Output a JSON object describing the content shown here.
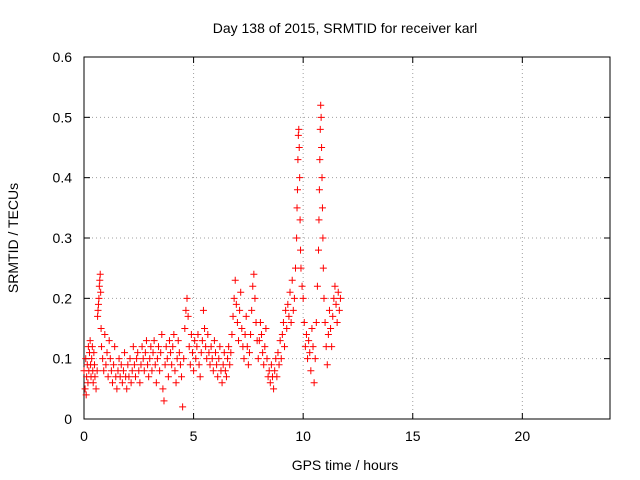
{
  "chart_data": {
    "type": "scatter",
    "title": "Day 138 of 2015, SRMTID for receiver karl",
    "xlabel": "GPS time / hours",
    "ylabel": "SRMTID / TECUs",
    "xlim": [
      0,
      24
    ],
    "ylim": [
      0,
      0.6
    ],
    "xticks": [
      0,
      5,
      10,
      15,
      20
    ],
    "xtick_labels": [
      "0",
      "5",
      "10",
      "15",
      "20"
    ],
    "yticks": [
      0,
      0.1,
      0.2,
      0.3,
      0.4,
      0.5,
      0.6
    ],
    "ytick_labels": [
      "0",
      "0.1",
      "0.2",
      "0.3",
      "0.4",
      "0.5",
      "0.6"
    ],
    "grid": true,
    "marker": "+",
    "color": "#ff0000",
    "series": [
      {
        "name": "SRMTID",
        "points": [
          [
            0.0,
            0.08
          ],
          [
            0.05,
            0.05
          ],
          [
            0.08,
            0.1
          ],
          [
            0.1,
            0.04
          ],
          [
            0.12,
            0.07
          ],
          [
            0.15,
            0.09
          ],
          [
            0.18,
            0.06
          ],
          [
            0.2,
            0.12
          ],
          [
            0.22,
            0.08
          ],
          [
            0.25,
            0.11
          ],
          [
            0.28,
            0.13
          ],
          [
            0.3,
            0.09
          ],
          [
            0.32,
            0.07
          ],
          [
            0.35,
            0.1
          ],
          [
            0.38,
            0.12
          ],
          [
            0.4,
            0.08
          ],
          [
            0.42,
            0.06
          ],
          [
            0.45,
            0.11
          ],
          [
            0.48,
            0.09
          ],
          [
            0.5,
            0.07
          ],
          [
            0.55,
            0.05
          ],
          [
            0.6,
            0.08
          ],
          [
            0.62,
            0.17
          ],
          [
            0.64,
            0.18
          ],
          [
            0.66,
            0.19
          ],
          [
            0.68,
            0.2
          ],
          [
            0.7,
            0.22
          ],
          [
            0.72,
            0.23
          ],
          [
            0.74,
            0.24
          ],
          [
            0.76,
            0.21
          ],
          [
            0.78,
            0.15
          ],
          [
            0.8,
            0.12
          ],
          [
            0.85,
            0.1
          ],
          [
            0.9,
            0.08
          ],
          [
            0.95,
            0.14
          ],
          [
            1.0,
            0.09
          ],
          [
            1.05,
            0.11
          ],
          [
            1.1,
            0.07
          ],
          [
            1.15,
            0.13
          ],
          [
            1.2,
            0.1
          ],
          [
            1.25,
            0.08
          ],
          [
            1.3,
            0.06
          ],
          [
            1.35,
            0.09
          ],
          [
            1.4,
            0.12
          ],
          [
            1.45,
            0.07
          ],
          [
            1.5,
            0.05
          ],
          [
            1.55,
            0.08
          ],
          [
            1.6,
            0.1
          ],
          [
            1.65,
            0.07
          ],
          [
            1.7,
            0.09
          ],
          [
            1.75,
            0.06
          ],
          [
            1.8,
            0.08
          ],
          [
            1.85,
            0.11
          ],
          [
            1.9,
            0.07
          ],
          [
            1.95,
            0.05
          ],
          [
            2.0,
            0.09
          ],
          [
            2.05,
            0.07
          ],
          [
            2.1,
            0.1
          ],
          [
            2.15,
            0.06
          ],
          [
            2.2,
            0.08
          ],
          [
            2.25,
            0.12
          ],
          [
            2.3,
            0.09
          ],
          [
            2.35,
            0.07
          ],
          [
            2.4,
            0.1
          ],
          [
            2.45,
            0.11
          ],
          [
            2.5,
            0.08
          ],
          [
            2.55,
            0.06
          ],
          [
            2.6,
            0.09
          ],
          [
            2.65,
            0.12
          ],
          [
            2.7,
            0.1
          ],
          [
            2.75,
            0.08
          ],
          [
            2.8,
            0.11
          ],
          [
            2.85,
            0.13
          ],
          [
            2.9,
            0.09
          ],
          [
            2.95,
            0.07
          ],
          [
            3.0,
            0.1
          ],
          [
            3.05,
            0.12
          ],
          [
            3.1,
            0.08
          ],
          [
            3.15,
            0.11
          ],
          [
            3.2,
            0.13
          ],
          [
            3.25,
            0.09
          ],
          [
            3.3,
            0.06
          ],
          [
            3.35,
            0.1
          ],
          [
            3.4,
            0.12
          ],
          [
            3.45,
            0.08
          ],
          [
            3.5,
            0.11
          ],
          [
            3.55,
            0.14
          ],
          [
            3.6,
            0.05
          ],
          [
            3.65,
            0.03
          ],
          [
            3.7,
            0.09
          ],
          [
            3.75,
            0.12
          ],
          [
            3.8,
            0.1
          ],
          [
            3.85,
            0.07
          ],
          [
            3.9,
            0.13
          ],
          [
            3.95,
            0.11
          ],
          [
            4.0,
            0.09
          ],
          [
            4.05,
            0.12
          ],
          [
            4.1,
            0.14
          ],
          [
            4.15,
            0.08
          ],
          [
            4.2,
            0.06
          ],
          [
            4.25,
            0.1
          ],
          [
            4.3,
            0.13
          ],
          [
            4.35,
            0.11
          ],
          [
            4.4,
            0.09
          ],
          [
            4.45,
            0.07
          ],
          [
            4.5,
            0.02
          ],
          [
            4.55,
            0.1
          ],
          [
            4.6,
            0.15
          ],
          [
            4.65,
            0.18
          ],
          [
            4.7,
            0.2
          ],
          [
            4.75,
            0.17
          ],
          [
            4.8,
            0.12
          ],
          [
            4.85,
            0.09
          ],
          [
            4.9,
            0.14
          ],
          [
            4.95,
            0.11
          ],
          [
            5.0,
            0.08
          ],
          [
            5.05,
            0.13
          ],
          [
            5.1,
            0.1
          ],
          [
            5.15,
            0.12
          ],
          [
            5.2,
            0.14
          ],
          [
            5.25,
            0.09
          ],
          [
            5.3,
            0.07
          ],
          [
            5.35,
            0.11
          ],
          [
            5.4,
            0.13
          ],
          [
            5.45,
            0.18
          ],
          [
            5.5,
            0.15
          ],
          [
            5.55,
            0.12
          ],
          [
            5.6,
            0.1
          ],
          [
            5.65,
            0.14
          ],
          [
            5.7,
            0.11
          ],
          [
            5.75,
            0.09
          ],
          [
            5.8,
            0.12
          ],
          [
            5.85,
            0.1
          ],
          [
            5.9,
            0.08
          ],
          [
            5.95,
            0.13
          ],
          [
            6.0,
            0.11
          ],
          [
            6.05,
            0.09
          ],
          [
            6.1,
            0.07
          ],
          [
            6.15,
            0.1
          ],
          [
            6.2,
            0.12
          ],
          [
            6.25,
            0.08
          ],
          [
            6.3,
            0.06
          ],
          [
            6.35,
            0.09
          ],
          [
            6.4,
            0.11
          ],
          [
            6.45,
            0.08
          ],
          [
            6.5,
            0.07
          ],
          [
            6.55,
            0.1
          ],
          [
            6.6,
            0.12
          ],
          [
            6.65,
            0.09
          ],
          [
            6.7,
            0.11
          ],
          [
            6.75,
            0.14
          ],
          [
            6.8,
            0.17
          ],
          [
            6.85,
            0.2
          ],
          [
            6.9,
            0.23
          ],
          [
            6.95,
            0.19
          ],
          [
            7.0,
            0.16
          ],
          [
            7.05,
            0.13
          ],
          [
            7.1,
            0.18
          ],
          [
            7.15,
            0.21
          ],
          [
            7.2,
            0.15
          ],
          [
            7.25,
            0.12
          ],
          [
            7.3,
            0.1
          ],
          [
            7.35,
            0.14
          ],
          [
            7.4,
            0.17
          ],
          [
            7.45,
            0.12
          ],
          [
            7.5,
            0.09
          ],
          [
            7.55,
            0.11
          ],
          [
            7.6,
            0.14
          ],
          [
            7.65,
            0.18
          ],
          [
            7.7,
            0.22
          ],
          [
            7.75,
            0.24
          ],
          [
            7.8,
            0.2
          ],
          [
            7.85,
            0.16
          ],
          [
            7.9,
            0.13
          ],
          [
            7.95,
            0.1
          ],
          [
            8.0,
            0.13
          ],
          [
            8.05,
            0.16
          ],
          [
            8.1,
            0.14
          ],
          [
            8.15,
            0.11
          ],
          [
            8.2,
            0.09
          ],
          [
            8.25,
            0.12
          ],
          [
            8.3,
            0.15
          ],
          [
            8.35,
            0.1
          ],
          [
            8.4,
            0.07
          ],
          [
            8.45,
            0.08
          ],
          [
            8.5,
            0.06
          ],
          [
            8.55,
            0.09
          ],
          [
            8.6,
            0.07
          ],
          [
            8.65,
            0.05
          ],
          [
            8.7,
            0.08
          ],
          [
            8.75,
            0.1
          ],
          [
            8.8,
            0.07
          ],
          [
            8.85,
            0.11
          ],
          [
            8.9,
            0.09
          ],
          [
            8.95,
            0.13
          ],
          [
            9.0,
            0.1
          ],
          [
            9.05,
            0.14
          ],
          [
            9.1,
            0.16
          ],
          [
            9.15,
            0.12
          ],
          [
            9.2,
            0.18
          ],
          [
            9.25,
            0.15
          ],
          [
            9.3,
            0.19
          ],
          [
            9.35,
            0.17
          ],
          [
            9.4,
            0.21
          ],
          [
            9.45,
            0.16
          ],
          [
            9.5,
            0.23
          ],
          [
            9.55,
            0.18
          ],
          [
            9.6,
            0.2
          ],
          [
            9.65,
            0.25
          ],
          [
            9.7,
            0.3
          ],
          [
            9.72,
            0.35
          ],
          [
            9.74,
            0.38
          ],
          [
            9.76,
            0.43
          ],
          [
            9.78,
            0.47
          ],
          [
            9.8,
            0.48
          ],
          [
            9.82,
            0.45
          ],
          [
            9.84,
            0.4
          ],
          [
            9.86,
            0.33
          ],
          [
            9.88,
            0.28
          ],
          [
            9.9,
            0.25
          ],
          [
            9.95,
            0.22
          ],
          [
            10.0,
            0.2
          ],
          [
            10.05,
            0.16
          ],
          [
            10.1,
            0.12
          ],
          [
            10.15,
            0.14
          ],
          [
            10.2,
            0.1
          ],
          [
            10.25,
            0.13
          ],
          [
            10.3,
            0.11
          ],
          [
            10.35,
            0.08
          ],
          [
            10.4,
            0.15
          ],
          [
            10.45,
            0.12
          ],
          [
            10.5,
            0.06
          ],
          [
            10.55,
            0.1
          ],
          [
            10.6,
            0.16
          ],
          [
            10.65,
            0.22
          ],
          [
            10.7,
            0.28
          ],
          [
            10.72,
            0.33
          ],
          [
            10.74,
            0.38
          ],
          [
            10.76,
            0.43
          ],
          [
            10.78,
            0.48
          ],
          [
            10.8,
            0.52
          ],
          [
            10.82,
            0.5
          ],
          [
            10.84,
            0.45
          ],
          [
            10.86,
            0.4
          ],
          [
            10.88,
            0.35
          ],
          [
            10.9,
            0.3
          ],
          [
            10.92,
            0.25
          ],
          [
            10.95,
            0.2
          ],
          [
            11.0,
            0.16
          ],
          [
            11.05,
            0.12
          ],
          [
            11.1,
            0.09
          ],
          [
            11.15,
            0.14
          ],
          [
            11.2,
            0.18
          ],
          [
            11.25,
            0.15
          ],
          [
            11.3,
            0.12
          ],
          [
            11.35,
            0.17
          ],
          [
            11.4,
            0.2
          ],
          [
            11.45,
            0.22
          ],
          [
            11.5,
            0.19
          ],
          [
            11.55,
            0.16
          ],
          [
            11.6,
            0.21
          ],
          [
            11.65,
            0.18
          ],
          [
            11.7,
            0.2
          ]
        ]
      }
    ]
  }
}
